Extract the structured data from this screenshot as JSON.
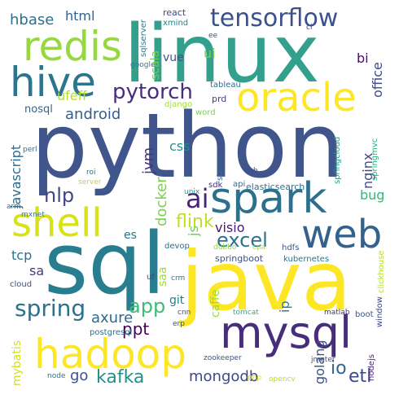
{
  "words": [
    {
      "text": "linux",
      "color": "#33a08d",
      "weight": 100
    },
    {
      "text": "python",
      "color": "#3f558c",
      "weight": 100
    },
    {
      "text": "java",
      "color": "#fde725",
      "weight": 95
    },
    {
      "text": "sql",
      "color": "#287d8e",
      "weight": 90
    },
    {
      "text": "mysql",
      "color": "#472d7b",
      "weight": 60
    },
    {
      "text": "spark",
      "color": "#2d708e",
      "weight": 55
    },
    {
      "text": "hadoop",
      "color": "#fde725",
      "weight": 50
    },
    {
      "text": "hive",
      "color": "#2b758e",
      "weight": 48
    },
    {
      "text": "redis",
      "color": "#95d840",
      "weight": 48
    },
    {
      "text": "oracle",
      "color": "#fde725",
      "weight": 44
    },
    {
      "text": "web",
      "color": "#33638d",
      "weight": 44
    },
    {
      "text": "shell",
      "color": "#d8e219",
      "weight": 44
    },
    {
      "text": "tensorflow",
      "color": "#3b518b",
      "weight": 32
    },
    {
      "text": "spring",
      "color": "#2c718e",
      "weight": 30
    },
    {
      "text": "pytorch",
      "color": "#472d7b",
      "weight": 26
    },
    {
      "text": "ai",
      "color": "#482475",
      "weight": 26
    },
    {
      "text": "excel",
      "color": "#2d708e",
      "weight": 22
    },
    {
      "text": "kafka",
      "color": "#21918c",
      "weight": 20
    },
    {
      "text": "nlp",
      "color": "#404688",
      "weight": 20
    },
    {
      "text": "app",
      "color": "#3fbc73",
      "weight": 20
    },
    {
      "text": "io",
      "color": "#32658e",
      "weight": 18
    },
    {
      "text": "etl",
      "color": "#3e4989",
      "weight": 18
    },
    {
      "text": "flink",
      "color": "#bddf26",
      "weight": 18
    },
    {
      "text": "mongodb",
      "color": "#3f4889",
      "weight": 16
    },
    {
      "text": "golang",
      "color": "#3b528b",
      "weight": 14
    },
    {
      "text": "android",
      "color": "#355f8d",
      "weight": 16
    },
    {
      "text": "axure",
      "color": "#31688e",
      "weight": 16
    },
    {
      "text": "ppt",
      "color": "#440154",
      "weight": 16
    },
    {
      "text": "html",
      "color": "#33638d",
      "weight": 14
    },
    {
      "text": "hbase",
      "color": "#2c718e",
      "weight": 14
    },
    {
      "text": "scala",
      "color": "#6ece58",
      "weight": 12
    },
    {
      "text": "visio",
      "color": "#481a6c",
      "weight": 14
    },
    {
      "text": "docker",
      "color": "#7ad151",
      "weight": 14
    },
    {
      "text": "go",
      "color": "#3b528b",
      "weight": 14
    },
    {
      "text": "jvm",
      "color": "#46337f",
      "weight": 14
    },
    {
      "text": "css",
      "color": "#21918c",
      "weight": 14
    },
    {
      "text": "javascript",
      "color": "#31688e",
      "weight": 12
    },
    {
      "text": "bug",
      "color": "#35b779",
      "weight": 12
    },
    {
      "text": "nginx",
      "color": "#3e4a89",
      "weight": 12
    },
    {
      "text": "office",
      "color": "#3e4a89",
      "weight": 12
    },
    {
      "text": "bi",
      "color": "#471164",
      "weight": 12
    },
    {
      "text": "ui",
      "color": "#7ad151",
      "weight": 12
    },
    {
      "text": "vue",
      "color": "#3b528b",
      "weight": 10
    },
    {
      "text": "ufeff",
      "color": "#b5de2b",
      "weight": 11
    },
    {
      "text": "nosql",
      "color": "#32658e",
      "weight": 10
    },
    {
      "text": "js",
      "color": "#6ece58",
      "weight": 12
    },
    {
      "text": "caffe",
      "color": "#a0da39",
      "weight": 11
    },
    {
      "text": "tcp",
      "color": "#2c718e",
      "weight": 11
    },
    {
      "text": "sa",
      "color": "#443a83",
      "weight": 11
    },
    {
      "text": "saa",
      "color": "#a0da39",
      "weight": 10
    },
    {
      "text": "git",
      "color": "#287c8e",
      "weight": 10
    },
    {
      "text": "es",
      "color": "#2c728e",
      "weight": 11
    },
    {
      "text": "ip",
      "color": "#26828e",
      "weight": 11
    },
    {
      "text": "mybatis",
      "color": "#d2e21b",
      "weight": 10
    },
    {
      "text": "tableau",
      "color": "#2f6c8e",
      "weight": 8
    },
    {
      "text": "prd",
      "color": "#433e85",
      "weight": 8
    },
    {
      "text": "word",
      "color": "#7ad151",
      "weight": 7
    },
    {
      "text": "django",
      "color": "#a5db36",
      "weight": 7
    },
    {
      "text": "google",
      "color": "#287d8e",
      "weight": 7
    },
    {
      "text": "xmind",
      "color": "#27808e",
      "weight": 7
    },
    {
      "text": "react",
      "color": "#3e4989",
      "weight": 7
    },
    {
      "text": "sqlserver",
      "color": "#2a788e",
      "weight": 7
    },
    {
      "text": "ee",
      "color": "#3b528b",
      "weight": 7
    },
    {
      "text": "ci",
      "color": "#3e4989",
      "weight": 7
    },
    {
      "text": "storm",
      "color": "#31688e",
      "weight": 7
    },
    {
      "text": "perl",
      "color": "#2d708e",
      "weight": 7
    },
    {
      "text": "sdk",
      "color": "#46307e",
      "weight": 7
    },
    {
      "text": "api",
      "color": "#2c718e",
      "weight": 7
    },
    {
      "text": "elasticsearch",
      "color": "#2d708e",
      "weight": 8
    },
    {
      "text": "springcloud",
      "color": "#1f9e89",
      "weight": 7
    },
    {
      "text": "springmvc",
      "color": "#29af7f",
      "weight": 7
    },
    {
      "text": "tob",
      "color": "#3b528b",
      "weight": 7
    },
    {
      "text": "roi",
      "color": "#2c728e",
      "weight": 7
    },
    {
      "text": "server",
      "color": "#b5de2b",
      "weight": 7
    },
    {
      "text": "unix",
      "color": "#1fa187",
      "weight": 7
    },
    {
      "text": "arm",
      "color": "#2c728e",
      "weight": 7
    },
    {
      "text": "mxnet",
      "color": "#287d8e",
      "weight": 7
    },
    {
      "text": "devop",
      "color": "#2d708e",
      "weight": 7
    },
    {
      "text": "dubbo",
      "color": "#95d840",
      "weight": 7
    },
    {
      "text": "cpa",
      "color": "#b8de29",
      "weight": 7
    },
    {
      "text": "hdfs",
      "color": "#39568c",
      "weight": 7
    },
    {
      "text": "springboot",
      "color": "#3b528b",
      "weight": 8
    },
    {
      "text": "kubernetes",
      "color": "#2b748e",
      "weight": 8
    },
    {
      "text": "clickhouse",
      "color": "#b5de2b",
      "weight": 7
    },
    {
      "text": "uf",
      "color": "#3e4989",
      "weight": 7
    },
    {
      "text": "crm",
      "color": "#2d708e",
      "weight": 7
    },
    {
      "text": "cloud",
      "color": "#3b528b",
      "weight": 7
    },
    {
      "text": "cnn",
      "color": "#3b528b",
      "weight": 7
    },
    {
      "text": "erp",
      "color": "#3b528b",
      "weight": 7
    },
    {
      "text": "tomcat",
      "color": "#2ab07f",
      "weight": 7
    },
    {
      "text": "matlab",
      "color": "#46327e",
      "weight": 7
    },
    {
      "text": "boot",
      "color": "#3b528b",
      "weight": 7
    },
    {
      "text": "window",
      "color": "#3e4989",
      "weight": 7
    },
    {
      "text": "postgresql",
      "color": "#2d708e",
      "weight": 7
    },
    {
      "text": "zookeeper",
      "color": "#3b528b",
      "weight": 7
    },
    {
      "text": "jmeter",
      "color": "#3b528b",
      "weight": 7
    },
    {
      "text": "nodejs",
      "color": "#482878",
      "weight": 7
    },
    {
      "text": "node",
      "color": "#2c728e",
      "weight": 7
    },
    {
      "text": "php",
      "color": "#d8e219",
      "weight": 7
    },
    {
      "text": "opencv",
      "color": "#b5de2b",
      "weight": 7
    }
  ]
}
